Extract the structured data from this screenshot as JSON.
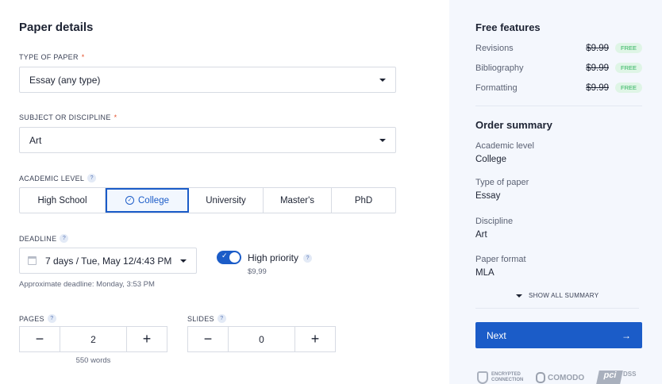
{
  "left": {
    "title": "Paper details",
    "type_label": "TYPE OF PAPER",
    "type_value": "Essay (any type)",
    "subject_label": "SUBJECT OR DISCIPLINE",
    "subject_value": "Art",
    "required_mark": "*",
    "level_label": "ACADEMIC LEVEL",
    "levels": [
      "High School",
      "College",
      "University",
      "Master's",
      "PhD"
    ],
    "selected_level": "College",
    "help": "?",
    "deadline_label": "DEADLINE",
    "deadline_value": "7 days / Tue, May 12/4:43 PM",
    "approx": "Approximate deadline: Monday, 3:53 PM",
    "priority_label": "High priority",
    "priority_price": "$9,99",
    "priority_on": true,
    "pages_label": "PAGES",
    "pages_value": "2",
    "words": "550 words",
    "slides_label": "SLIDES",
    "slides_value": "0",
    "minus": "−",
    "plus": "+"
  },
  "right": {
    "features_title": "Free features",
    "features": [
      {
        "name": "Revisions",
        "price": "$9.99",
        "badge": "FREE"
      },
      {
        "name": "Bibliography",
        "price": "$9.99",
        "badge": "FREE"
      },
      {
        "name": "Formatting",
        "price": "$9.99",
        "badge": "FREE"
      }
    ],
    "summary_title": "Order summary",
    "summary": [
      {
        "k": "Academic level",
        "v": "College"
      },
      {
        "k": "Type of paper",
        "v": "Essay"
      },
      {
        "k": "Discipline",
        "v": "Art"
      },
      {
        "k": "Paper format",
        "v": "MLA"
      }
    ],
    "show_all": "SHOW ALL SUMMARY",
    "next": "Next",
    "arrow": "→",
    "badges": {
      "encrypted": "ENCRYPTED CONNECTION",
      "comodo": "COMODO",
      "pci": "DSS"
    }
  },
  "colors": {
    "accent": "#1b5cc8",
    "free": "#2eb35d",
    "panel": "#f4f7fd"
  }
}
